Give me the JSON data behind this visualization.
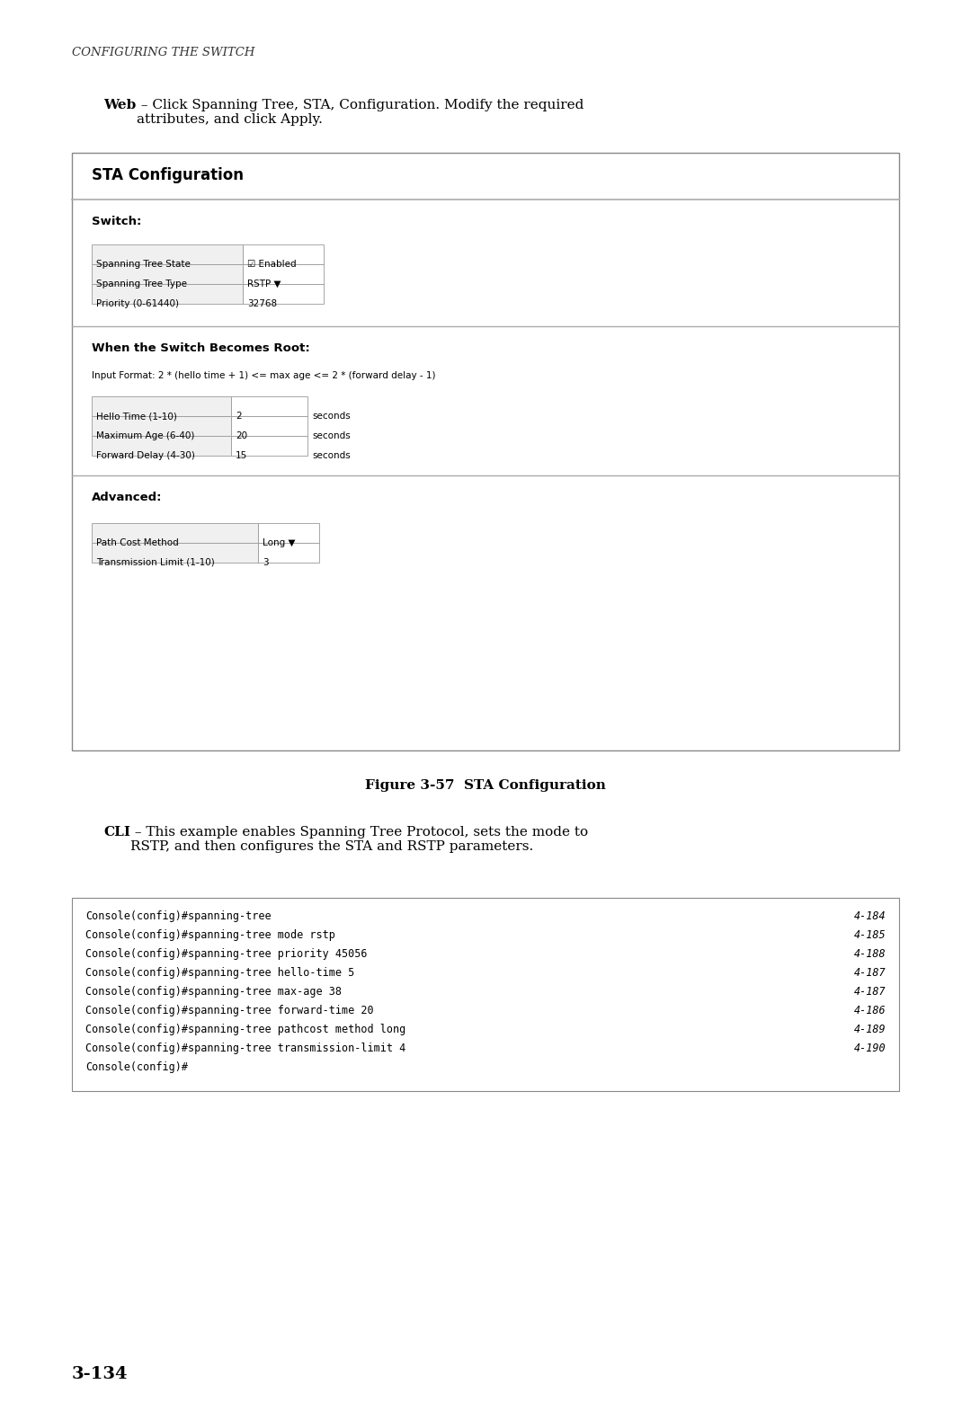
{
  "page_bg": "#ffffff",
  "header_text": "Configuring the Switch",
  "header_font_size": 9.5,
  "web_bold": "Web",
  "web_text": " – Click Spanning Tree, STA, Configuration. Modify the required\nattributes, and click Apply.",
  "web_font_size": 11,
  "sta_title": "STA Configuration",
  "sta_title_fontsize": 11,
  "switch_label": "Switch:",
  "switch_rows": [
    {
      "label": "Spanning Tree State",
      "value": "☑ Enabled"
    },
    {
      "label": "Spanning Tree Type",
      "value": "RSTP ▼"
    },
    {
      "label": "Priority (0-61440)",
      "value": "32768"
    }
  ],
  "root_title": "When the Switch Becomes Root:",
  "input_format": "Input Format: 2 * (hello time + 1) <= max age <= 2 * (forward delay - 1)",
  "root_rows": [
    {
      "label": "Hello Time (1-10)",
      "value": "2",
      "unit": "seconds"
    },
    {
      "label": "Maximum Age (6-40)",
      "value": "20",
      "unit": "seconds"
    },
    {
      "label": "Forward Delay (4-30)",
      "value": "15",
      "unit": "seconds"
    }
  ],
  "advanced_title": "Advanced:",
  "advanced_rows": [
    {
      "label": "Path Cost Method",
      "value": "Long ▼"
    },
    {
      "label": "Transmission Limit (1-10)",
      "value": "3"
    }
  ],
  "fig_caption": "Figure 3-57  STA Configuration",
  "fig_caption_fontsize": 11,
  "cli_bold": "CLI",
  "cli_text": " – This example enables Spanning Tree Protocol, sets the mode to\nRSTP, and then configures the STA and RSTP parameters.",
  "cli_fontsize": 11,
  "cli_lines": [
    {
      "cmd": "Console(config)#spanning-tree",
      "ref": "4-184"
    },
    {
      "cmd": "Console(config)#spanning-tree mode rstp",
      "ref": "4-185"
    },
    {
      "cmd": "Console(config)#spanning-tree priority 45056",
      "ref": "4-188"
    },
    {
      "cmd": "Console(config)#spanning-tree hello-time 5",
      "ref": "4-187"
    },
    {
      "cmd": "Console(config)#spanning-tree max-age 38",
      "ref": "4-187"
    },
    {
      "cmd": "Console(config)#spanning-tree forward-time 20",
      "ref": "4-186"
    },
    {
      "cmd": "Console(config)#spanning-tree pathcost method long",
      "ref": "4-189"
    },
    {
      "cmd": "Console(config)#spanning-tree transmission-limit 4",
      "ref": "4-190"
    },
    {
      "cmd": "Console(config)#",
      "ref": ""
    }
  ],
  "cli_fontsize_mono": 8.5,
  "page_num": "3-134",
  "page_num_fontsize": 14
}
